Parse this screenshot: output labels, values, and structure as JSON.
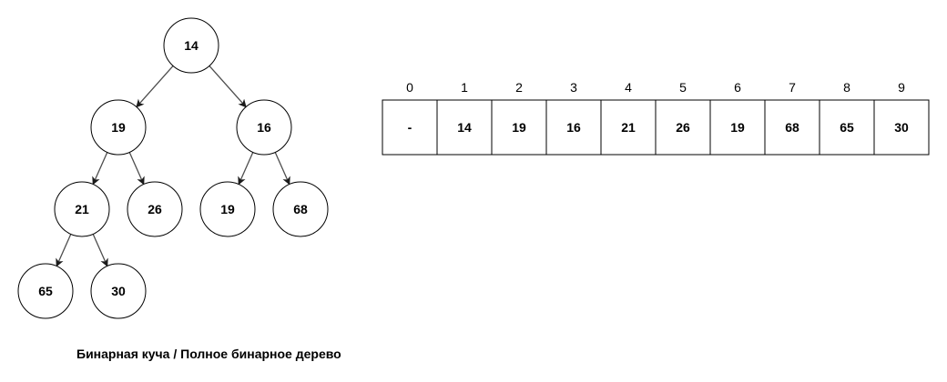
{
  "tree": {
    "nodes": [
      {
        "id": "n1",
        "value": "14"
      },
      {
        "id": "n2",
        "value": "19"
      },
      {
        "id": "n3",
        "value": "16"
      },
      {
        "id": "n4",
        "value": "21"
      },
      {
        "id": "n5",
        "value": "26"
      },
      {
        "id": "n6",
        "value": "19"
      },
      {
        "id": "n7",
        "value": "68"
      },
      {
        "id": "n8",
        "value": "65"
      },
      {
        "id": "n9",
        "value": "30"
      }
    ],
    "edges": [
      {
        "from": "n1",
        "to": "n2"
      },
      {
        "from": "n1",
        "to": "n3"
      },
      {
        "from": "n2",
        "to": "n4"
      },
      {
        "from": "n2",
        "to": "n5"
      },
      {
        "from": "n3",
        "to": "n6"
      },
      {
        "from": "n3",
        "to": "n7"
      },
      {
        "from": "n4",
        "to": "n8"
      },
      {
        "from": "n4",
        "to": "n9"
      }
    ]
  },
  "array": {
    "indices": [
      "0",
      "1",
      "2",
      "3",
      "4",
      "5",
      "6",
      "7",
      "8",
      "9"
    ],
    "values": [
      "-",
      "14",
      "19",
      "16",
      "21",
      "26",
      "19",
      "68",
      "65",
      "30"
    ]
  },
  "caption": "Бинарная куча / Полное бинарное дерево",
  "colors": {
    "stroke": "#000000",
    "edge": "#4d4d4d",
    "background": "#ffffff"
  }
}
